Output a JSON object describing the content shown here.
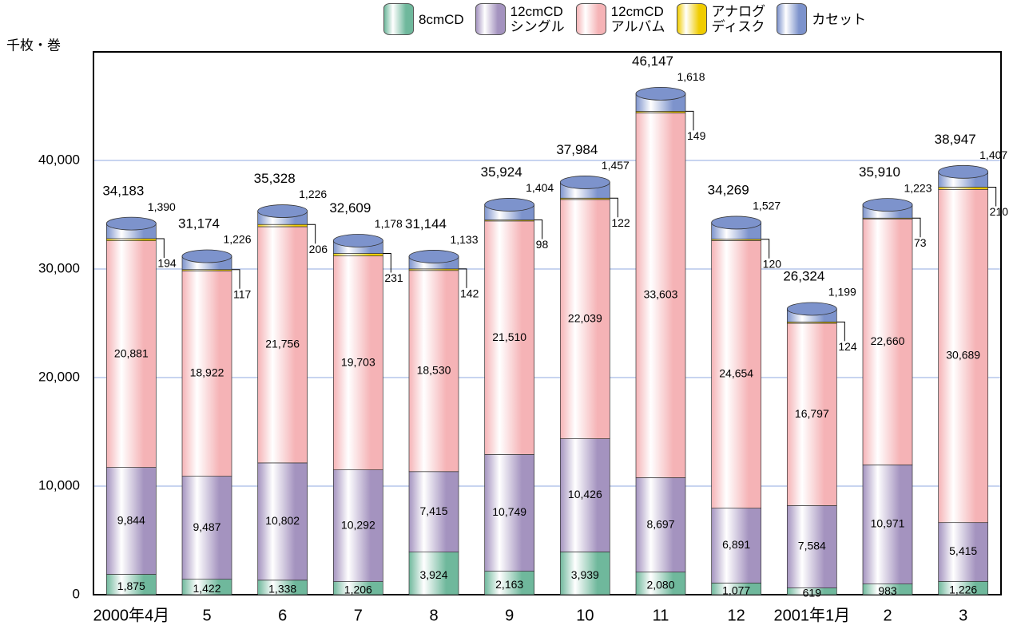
{
  "chart_data": {
    "type": "stacked-bar",
    "y_unit": "千枚・巻",
    "categories": [
      "2000年4月",
      "5",
      "6",
      "7",
      "8",
      "9",
      "10",
      "11",
      "12",
      "2001年1月",
      "2",
      "3"
    ],
    "series": [
      {
        "name": "8cmCD",
        "color": "#6fb89c",
        "values": [
          1875,
          1422,
          1338,
          1206,
          3924,
          2163,
          3939,
          2080,
          1077,
          619,
          983,
          1226
        ],
        "value_labels": [
          "1,875",
          "1,422",
          "1,338",
          "1,206",
          "3,924",
          "2,163",
          "3,939",
          "2,080",
          "1,077",
          "619",
          "983",
          "1,226"
        ]
      },
      {
        "name": "12cmCD\nシングル",
        "color": "#a493bf",
        "values": [
          9844,
          9487,
          10802,
          10292,
          7415,
          10749,
          10426,
          8697,
          6891,
          7584,
          10971,
          5415
        ],
        "value_labels": [
          "9,844",
          "9,487",
          "10,802",
          "10,292",
          "7,415",
          "10,749",
          "10,426",
          "8,697",
          "6,891",
          "7,584",
          "10,971",
          "5,415"
        ]
      },
      {
        "name": "12cmCD\nアルバム",
        "color": "#f5b3b6",
        "values": [
          20881,
          18922,
          21756,
          19703,
          18530,
          21510,
          22039,
          33603,
          24654,
          16797,
          22660,
          30689
        ],
        "value_labels": [
          "20,881",
          "18,922",
          "21,756",
          "19,703",
          "18,530",
          "21,510",
          "22,039",
          "33,603",
          "24,654",
          "16,797",
          "22,660",
          "30,689"
        ]
      },
      {
        "name": "アナログ\nディスク",
        "color": "#f0cc00",
        "values": [
          194,
          117,
          206,
          231,
          142,
          98,
          122,
          149,
          120,
          124,
          73,
          210
        ]
      },
      {
        "name": "カセット",
        "color": "#7d93cc",
        "values": [
          1390,
          1226,
          1226,
          1178,
          1133,
          1404,
          1457,
          1618,
          1527,
          1199,
          1223,
          1407
        ],
        "value_labels": [
          "1,390",
          "1,226",
          "1,226",
          "1,178",
          "1,133",
          "1,404",
          "1,457",
          "1,618",
          "1,527",
          "1,199",
          "1,223",
          "1,407"
        ]
      }
    ],
    "totals": {
      "values": [
        34183,
        31174,
        35328,
        32609,
        31144,
        35924,
        37984,
        46147,
        34269,
        26324,
        35910,
        38947
      ],
      "value_labels": [
        "34,183",
        "31,174",
        "35,328",
        "32,609",
        "31,144",
        "35,924",
        "37,984",
        "46,147",
        "34,269",
        "26,324",
        "35,910",
        "38,947"
      ]
    },
    "ylim": [
      0,
      50000
    ],
    "yticks": [
      0,
      {
        "value": 10000,
        "label": "10,000"
      },
      {
        "value": 20000,
        "label": "20,000"
      },
      {
        "value": 30000,
        "label": "30,000"
      },
      {
        "value": 40000,
        "label": "40,000"
      }
    ],
    "grid": true
  }
}
